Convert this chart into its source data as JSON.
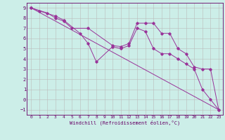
{
  "xlabel": "Windchill (Refroidissement éolien,°C)",
  "background_color": "#cceee8",
  "grid_color": "#bbbbbb",
  "line_color": "#993399",
  "spine_color": "#660066",
  "tick_color": "#660066",
  "xlim": [
    -0.5,
    23.5
  ],
  "ylim": [
    -1.5,
    9.5
  ],
  "xticks": [
    0,
    1,
    2,
    3,
    4,
    5,
    6,
    7,
    8,
    9,
    10,
    11,
    12,
    13,
    14,
    15,
    16,
    17,
    18,
    19,
    20,
    21,
    22,
    23
  ],
  "yticks": [
    -1,
    0,
    1,
    2,
    3,
    4,
    5,
    6,
    7,
    8,
    9
  ],
  "series1_x": [
    0,
    1,
    3,
    4,
    6,
    7,
    8,
    10,
    11,
    12,
    13,
    14,
    15,
    16,
    17,
    18,
    19,
    20,
    21,
    22,
    23
  ],
  "series1_y": [
    9,
    8.7,
    8.2,
    7.8,
    6.5,
    5.5,
    3.7,
    5.2,
    5.0,
    5.3,
    7.0,
    6.7,
    5.0,
    4.5,
    4.5,
    4.0,
    3.5,
    3.0,
    1.0,
    0.0,
    -1.0
  ],
  "series2_x": [
    0,
    2,
    3,
    4,
    5,
    7,
    10,
    11,
    12,
    13,
    14,
    15,
    16,
    17,
    18,
    19,
    20,
    21,
    22,
    23
  ],
  "series2_y": [
    9,
    8.5,
    8.0,
    7.7,
    7.0,
    7.0,
    5.3,
    5.2,
    5.5,
    7.5,
    7.5,
    7.5,
    6.5,
    6.5,
    5.0,
    4.5,
    3.2,
    3.0,
    3.0,
    -1.0
  ],
  "series3_x": [
    0,
    23
  ],
  "series3_y": [
    9,
    -1
  ],
  "figsize": [
    3.2,
    2.0
  ],
  "dpi": 100
}
